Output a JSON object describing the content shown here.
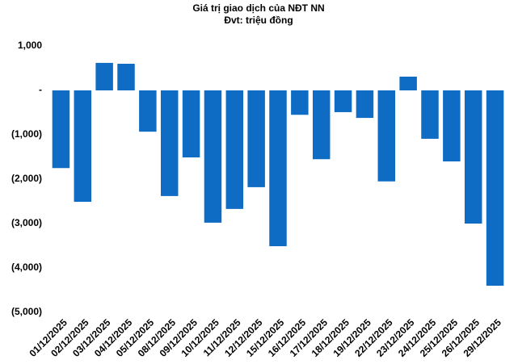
{
  "chart_data": {
    "type": "bar",
    "title": "Giá trị giao dịch của NĐT NN",
    "subtitle": "Đvt: triệu đồng",
    "categories": [
      "01/12/2025",
      "02/12/2025",
      "03/12/2025",
      "04/12/2025",
      "05/12/2025",
      "08/12/2025",
      "09/12/2025",
      "10/12/2025",
      "11/12/2025",
      "12/12/2025",
      "15/12/2025",
      "16/12/2025",
      "17/12/2025",
      "18/12/2025",
      "19/12/2025",
      "22/12/2025",
      "23/12/2025",
      "24/12/2025",
      "25/12/2025",
      "26/12/2025",
      "29/12/2025"
    ],
    "values": [
      -1750,
      -2510,
      620,
      600,
      -930,
      -2380,
      -1510,
      -2980,
      -2670,
      -2180,
      -3510,
      -550,
      -1550,
      -490,
      -620,
      -2050,
      310,
      -1090,
      -1600,
      -3000,
      -4400
    ],
    "color": "#0e6cc4",
    "ylim": [
      -5000,
      1000
    ],
    "yticks": [
      {
        "value": 1000,
        "label": "1,000"
      },
      {
        "value": 0,
        "label": "-"
      },
      {
        "value": -1000,
        "label": "(1,000)"
      },
      {
        "value": -2000,
        "label": "(2,000)"
      },
      {
        "value": -3000,
        "label": "(3,000)"
      },
      {
        "value": -4000,
        "label": "(4,000)"
      },
      {
        "value": -5000,
        "label": "(5,000)"
      }
    ],
    "grid": false
  }
}
